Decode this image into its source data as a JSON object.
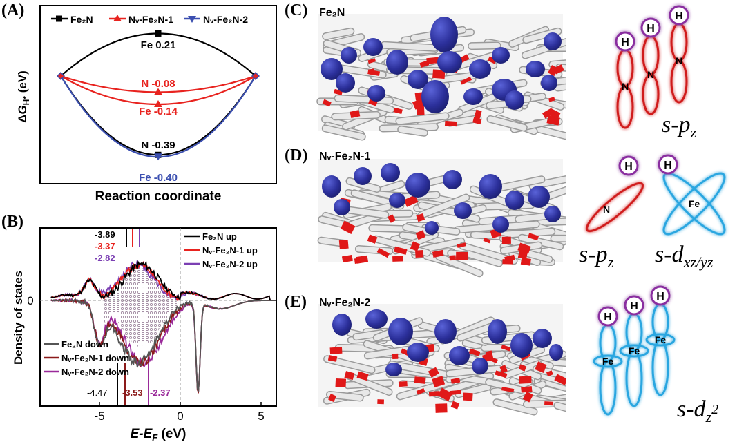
{
  "panels": {
    "A": "(A)",
    "B": "(B)",
    "C": "(C)",
    "D": "(D)",
    "E": "(E)"
  },
  "chart_data": [
    {
      "type": "line",
      "panel": "A",
      "xlabel": "Reaction coordinate",
      "ylabel": "ΔG_H* (eV)",
      "ylim": [
        -0.5,
        0.3
      ],
      "series": [
        {
          "name": "Fe2N",
          "color": "#000000",
          "marker": "square",
          "values": [
            0.0,
            0.21,
            0.0
          ]
        },
        {
          "name": "Nv-Fe2N-1",
          "color": "#e8231f",
          "marker": "triangle-up",
          "values": [
            0.0,
            -0.08,
            0.0
          ]
        },
        {
          "name": "Nv-Fe2N-1",
          "color": "#e8231f",
          "marker": "triangle-up",
          "values": [
            0.0,
            -0.14,
            0.0
          ]
        },
        {
          "name": "Fe2N",
          "color": "#000000",
          "marker": "square",
          "values": [
            0.0,
            -0.39,
            0.0
          ]
        },
        {
          "name": "Nv-Fe2N-2",
          "color": "#3b4fb0",
          "marker": "triangle-down",
          "values": [
            0.0,
            -0.4,
            0.0
          ]
        }
      ],
      "annotations": [
        {
          "text": "Fe 0.21",
          "color": "#000000"
        },
        {
          "text": "N -0.08",
          "color": "#e8231f"
        },
        {
          "text": "Fe -0.14",
          "color": "#e8231f"
        },
        {
          "text": "N -0.39",
          "color": "#000000"
        },
        {
          "text": "Fe -0.40",
          "color": "#3b4fb0"
        }
      ],
      "legend": [
        "Fe₂N",
        "Nᵥ-Fe₂N-1",
        "Nᵥ-Fe₂N-2"
      ],
      "legend_placement": "top"
    },
    {
      "type": "line",
      "panel": "B",
      "xlabel": "E-E_F (eV)",
      "ylabel": "Density of states",
      "xlim": [
        -8,
        6
      ],
      "xticks": [
        "-5",
        "0",
        "5"
      ],
      "yticks": [
        "0"
      ],
      "legend_up": [
        "Fe₂N up",
        "Nᵥ-Fe₂N-1 up",
        "Nᵥ-Fe₂N-2 up"
      ],
      "legend_down": [
        "Fe₂N down",
        "Nᵥ-Fe₂N-1 down",
        "Nᵥ-Fe₂N-2 down"
      ],
      "band_centers_up": [
        {
          "text": "-3.89",
          "value": -3.89,
          "color": "#000000"
        },
        {
          "text": "-3.37",
          "value": -3.37,
          "color": "#e8231f"
        },
        {
          "text": "-2.82",
          "value": -2.82,
          "color": "#7b3fb3"
        }
      ],
      "band_centers_down": [
        {
          "text": "-4.47",
          "value": -4.47,
          "color": "#000000"
        },
        {
          "text": "-3.53",
          "value": -3.53,
          "color": "#8b1a1a"
        },
        {
          "text": "-2.37",
          "value": -2.37,
          "color": "#9a2a9a"
        }
      ],
      "series_up_colors": [
        "#000000",
        "#e8231f",
        "#7b3fb3"
      ],
      "series_down_colors": [
        "#555555",
        "#8b1a1a",
        "#9a2a9a"
      ]
    }
  ],
  "structures": {
    "C": "Fe₂N",
    "D": "Nᵥ-Fe₂N-1",
    "E": "Nᵥ-Fe₂N-2"
  },
  "orbitals": {
    "C_label": "s-pz",
    "D_label_left": "s-pz",
    "D_label_right": "s-dxz/yz",
    "E_label": "s-dz²",
    "atom_H": "H",
    "atom_N": "N",
    "atom_Fe": "Fe"
  },
  "colors": {
    "red": "#e8231f",
    "black": "#000000",
    "blue": "#3b4fb0",
    "purple": "#7b3fb3",
    "cyan_orbital": "#2aa6e0",
    "red_orbital": "#d01f1f",
    "purple_ring": "#8a2fa0",
    "isosurface": "#2b2f9a"
  }
}
